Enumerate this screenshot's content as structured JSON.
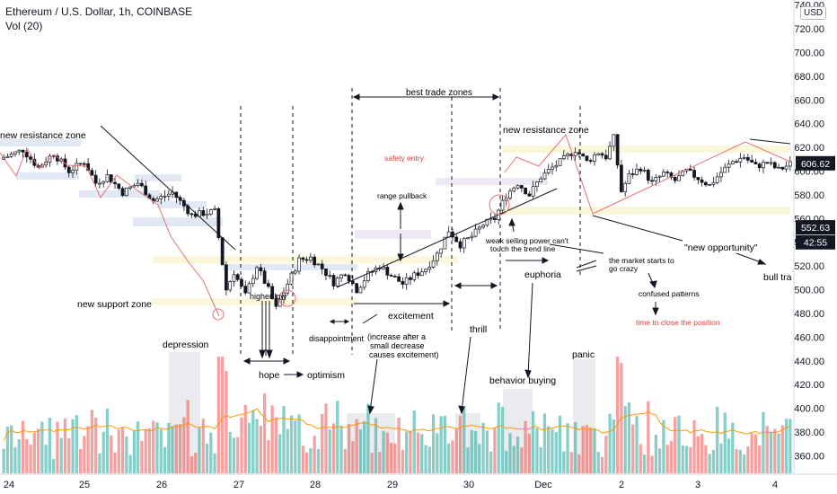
{
  "header": {
    "title": "Ethereum / U.S. Dollar, 1h, COINBASE",
    "indicator": "Vol (20)",
    "currency": "USD"
  },
  "chart_data": {
    "type": "candlestick",
    "ylim": [
      352,
      742
    ],
    "y_ticks": [
      360,
      380,
      400,
      420,
      440,
      460,
      480,
      500,
      520,
      540,
      560,
      580,
      600,
      620,
      640,
      660,
      680,
      700,
      720,
      740
    ],
    "x_ticks": [
      "24",
      "25",
      "26",
      "27",
      "28",
      "29",
      "30",
      "Dec",
      "2",
      "3",
      "4"
    ],
    "price_labels": [
      {
        "text": "606.62",
        "value": 606.62,
        "style": "dark"
      },
      {
        "text": "552.63",
        "value": 552.63,
        "style": "dark"
      },
      {
        "text": "42:55",
        "value": 540,
        "style": "dark"
      }
    ],
    "series_path": [
      [
        0,
        610
      ],
      [
        6,
        618
      ],
      [
        10,
        603
      ],
      [
        14,
        615
      ],
      [
        18,
        600
      ],
      [
        22,
        608
      ],
      [
        25,
        590
      ],
      [
        28,
        596
      ],
      [
        32,
        582
      ],
      [
        36,
        590
      ],
      [
        40,
        575
      ],
      [
        45,
        582
      ],
      [
        50,
        563
      ],
      [
        56,
        566
      ],
      [
        59,
        500
      ],
      [
        61,
        515
      ],
      [
        64,
        495
      ],
      [
        67,
        520
      ],
      [
        70,
        500
      ],
      [
        72,
        484
      ],
      [
        75,
        505
      ],
      [
        78,
        525
      ],
      [
        81,
        527
      ],
      [
        84,
        518
      ],
      [
        87,
        506
      ],
      [
        90,
        515
      ],
      [
        93,
        500
      ],
      [
        96,
        513
      ],
      [
        99,
        520
      ],
      [
        102,
        512
      ],
      [
        105,
        505
      ],
      [
        108,
        512
      ],
      [
        111,
        518
      ],
      [
        114,
        530
      ],
      [
        117,
        550
      ],
      [
        120,
        538
      ],
      [
        123,
        545
      ],
      [
        126,
        555
      ],
      [
        129,
        560
      ],
      [
        132,
        580
      ],
      [
        135,
        590
      ],
      [
        138,
        580
      ],
      [
        141,
        595
      ],
      [
        144,
        603
      ],
      [
        147,
        610
      ],
      [
        150,
        618
      ],
      [
        153,
        608
      ],
      [
        156,
        616
      ],
      [
        158,
        612
      ],
      [
        160,
        628
      ],
      [
        162,
        583
      ],
      [
        164,
        596
      ],
      [
        167,
        603
      ],
      [
        170,
        590
      ],
      [
        173,
        598
      ],
      [
        176,
        592
      ],
      [
        179,
        600
      ],
      [
        182,
        594
      ],
      [
        185,
        588
      ],
      [
        188,
        599
      ],
      [
        191,
        608
      ],
      [
        194,
        612
      ],
      [
        197,
        604
      ],
      [
        200,
        607
      ],
      [
        203,
        601
      ],
      [
        206,
        606
      ]
    ],
    "volume_max": 45
  },
  "annotations": {
    "new_resistance_zone_left": "new resistance zone",
    "new_support_zone": "new support zone",
    "higher_low": "higher low",
    "depression": "depression",
    "hope": "hope",
    "optimism": "optimism",
    "disappointment": "disappointment",
    "excitement": "excitement",
    "excitement_note_1": "(increase after a",
    "excitement_note_2": "small decrease",
    "excitement_note_3": "causes excitement)",
    "best_trade_zones": "best trade zones",
    "safety_entry": "safety entry",
    "range_pullback": "range pullback",
    "thrill": "thrill",
    "new_resistance_zone_right": "new resistance zone",
    "weak_selling_1": "weak selling power can't",
    "weak_selling_2": "touch the trend line",
    "euphoria": "euphoria",
    "behavior_buying": "behavior buying",
    "market_crazy_1": "the market starts to",
    "market_crazy_2": "go crazy",
    "confused_patterns": "confused patterns",
    "time_to_close": "time to close the position",
    "new_opportunity": "\"new opportunity\"",
    "bull_trap": "bull tra",
    "panic": "panic"
  }
}
